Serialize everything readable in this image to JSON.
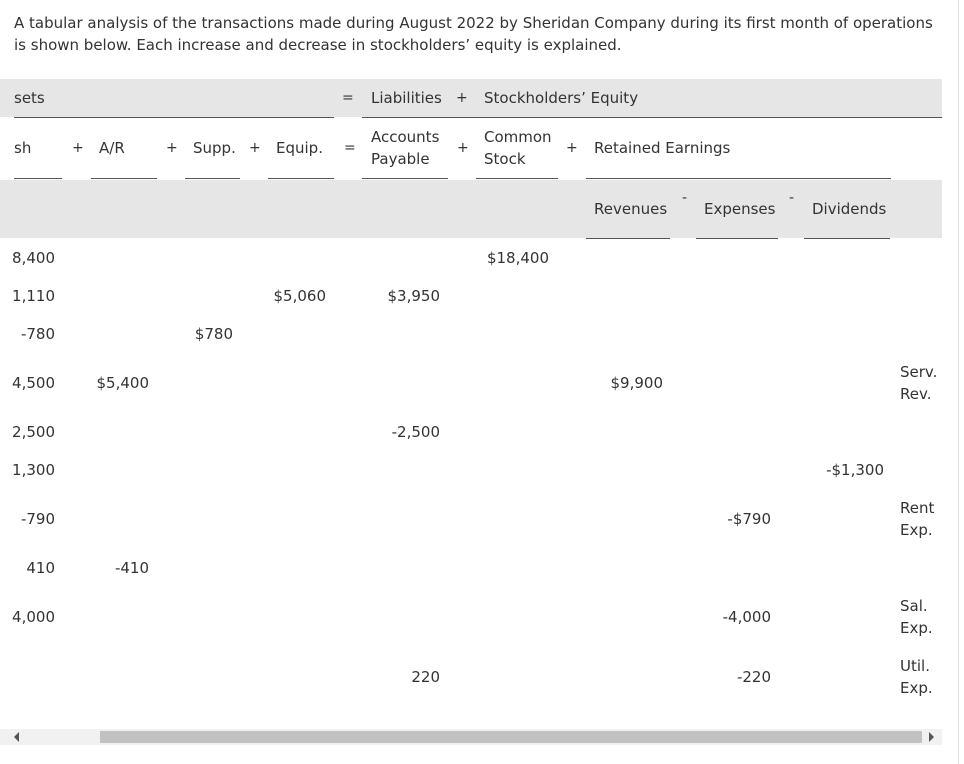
{
  "intro": "A tabular analysis of the transactions made during August 2022 by Sheridan Company during its first month of operations is shown below. Each increase and decrease in stockholders’ equity is explained.",
  "header": {
    "assets": "sets",
    "eq1": "=",
    "liabilities": "Liabilities",
    "plus1": "+",
    "equity": "Stockholders’ Equity",
    "cash": "sh",
    "plus_ar": "+",
    "ar": "A/R",
    "plus_supp": "+",
    "supp": "Supp.",
    "plus_equip": "+",
    "equip": "Equip.",
    "eq2": "=",
    "ap_line1": "Accounts",
    "ap_line2": "Payable",
    "plus_cs": "+",
    "cs_line1": "Common",
    "cs_line2": "Stock",
    "plus_re": "+",
    "re": "Retained Earnings",
    "revenues": "Revenues",
    "minus_exp": "-",
    "expenses": "Expenses",
    "minus_div": "-",
    "dividends": "Dividends"
  },
  "rows": [
    {
      "cash": "8,400",
      "cs": "$18,400"
    },
    {
      "cash": "1,110",
      "equip": "$5,060",
      "ap": "$3,950"
    },
    {
      "cash": "-780",
      "supp": "$780"
    },
    {
      "cash": "4,500",
      "ar": "$5,400",
      "rev": "$9,900",
      "note1": "Serv.",
      "note2": "Rev."
    },
    {
      "cash": "2,500",
      "ap": "-2,500"
    },
    {
      "cash": "1,300",
      "div": "-$1,300"
    },
    {
      "cash": "-790",
      "exp": "-$790",
      "note1": "Rent",
      "note2": "Exp."
    },
    {
      "cash": "410",
      "ar": "-410"
    },
    {
      "cash": "4,000",
      "exp": "-4,000",
      "note1": "Sal.",
      "note2": "Exp."
    },
    {
      "ap": "220",
      "exp": "-220",
      "note1": "Util.",
      "note2": "Exp."
    }
  ]
}
